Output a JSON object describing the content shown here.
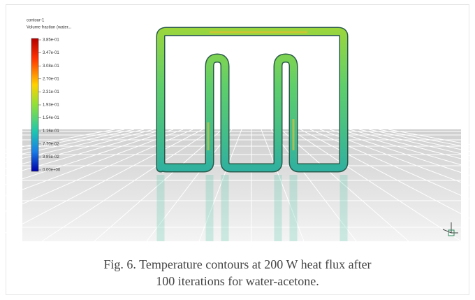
{
  "figure": {
    "legend": {
      "title": "contour-1",
      "subtitle": "Volume fraction (water...",
      "labels": [
        "3.85e-01",
        "3.47e-01",
        "3.08e-01",
        "2.70e-01",
        "2.31e-01",
        "1.93e-01",
        "1.54e-01",
        "1.16e-01",
        "7.70e-02",
        "3.85e-02",
        "0.00e+00"
      ]
    },
    "caption": {
      "lines": [
        "Fig. 6. Temperature contours at 200 W heat flux after",
        "100 iterations for water-acetone."
      ]
    }
  }
}
